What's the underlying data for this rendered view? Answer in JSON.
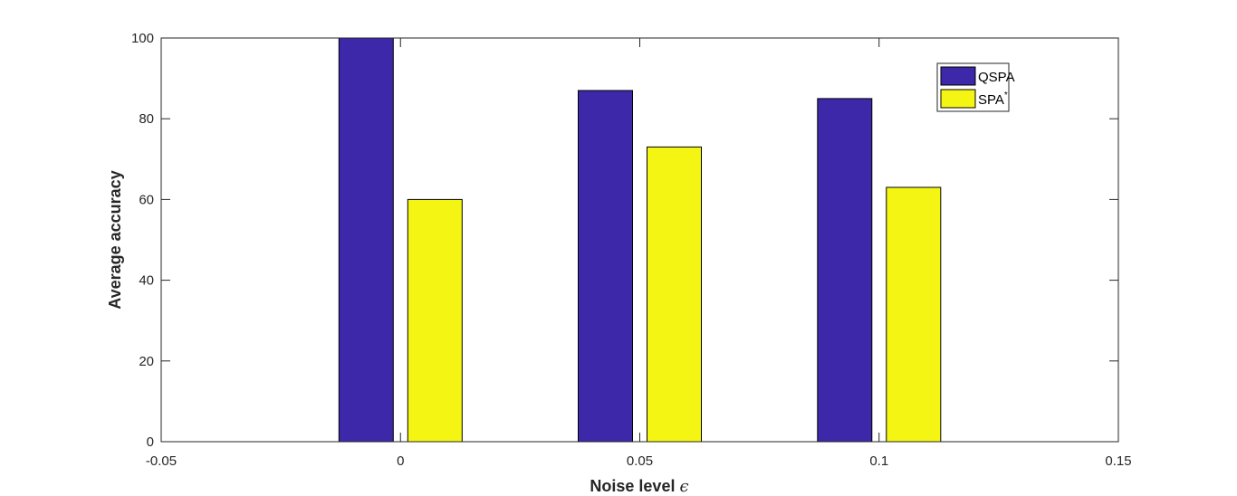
{
  "chart_data": {
    "type": "bar",
    "x": [
      0,
      0.05,
      0.1
    ],
    "x_tick_labels": [
      "-0.05",
      "0",
      "0.05",
      "0.1",
      "0.15"
    ],
    "x_ticks": [
      -0.05,
      0,
      0.05,
      0.1,
      0.15
    ],
    "y_tick_labels": [
      "0",
      "20",
      "40",
      "60",
      "80",
      "100"
    ],
    "y_ticks": [
      0,
      20,
      40,
      60,
      80,
      100
    ],
    "xlim": [
      -0.05,
      0.15
    ],
    "ylim": [
      0,
      100
    ],
    "xlabel": "Noise level",
    "xlabel_symbol": "ϵ",
    "ylabel": "Average accuracy",
    "title": "",
    "grid": false,
    "legend_position": "top-right",
    "series": [
      {
        "name": "QSPA",
        "legend_text": "QSPA",
        "legend_sup": "",
        "color": "#3c28a8",
        "values": [
          100,
          87,
          85
        ]
      },
      {
        "name": "SPA*",
        "legend_text": "SPA",
        "legend_sup": "*",
        "color": "#f5f514",
        "values": [
          60,
          73,
          63
        ]
      }
    ]
  }
}
